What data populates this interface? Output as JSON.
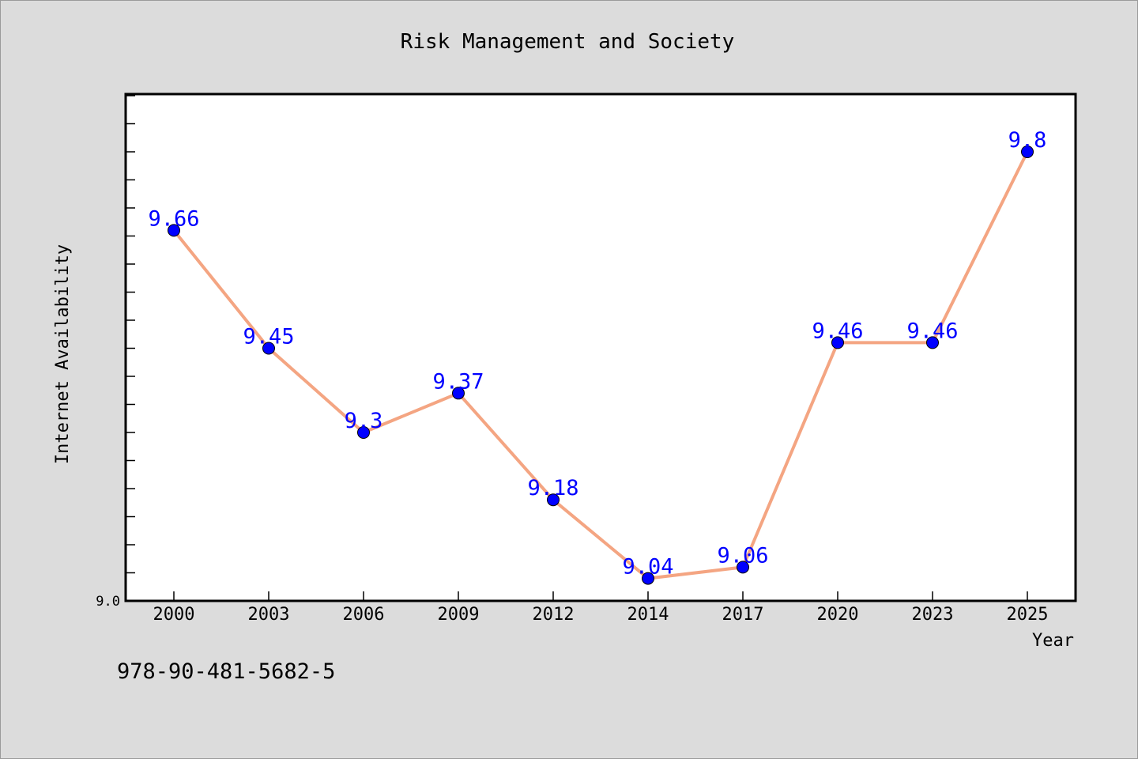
{
  "isbn": "978-90-481-5682-5",
  "chart_data": {
    "type": "line",
    "title": "Risk Management and Society",
    "xlabel": "Year",
    "ylabel": "Internet Availability",
    "categories": [
      "2000",
      "2003",
      "2006",
      "2009",
      "2012",
      "2014",
      "2017",
      "2020",
      "2023",
      "2025"
    ],
    "series": [
      {
        "values": [
          9.66,
          9.45,
          9.3,
          9.37,
          9.18,
          9.04,
          9.06,
          9.46,
          9.46,
          9.8
        ],
        "data_labels": [
          "9.66",
          "9.45",
          "9.3",
          "9.37",
          "9.18",
          "9.04",
          "9.06",
          "9.46",
          "9.46",
          "9.8"
        ]
      }
    ],
    "ylim": [
      9.0,
      9.9
    ],
    "y_tick_label": "9.0",
    "grid": false,
    "colors": {
      "line": "#f4a582",
      "marker": "#0000ff",
      "data_label": "#0000ff",
      "background": "#dcdcdc",
      "plot_background": "#ffffff"
    }
  }
}
